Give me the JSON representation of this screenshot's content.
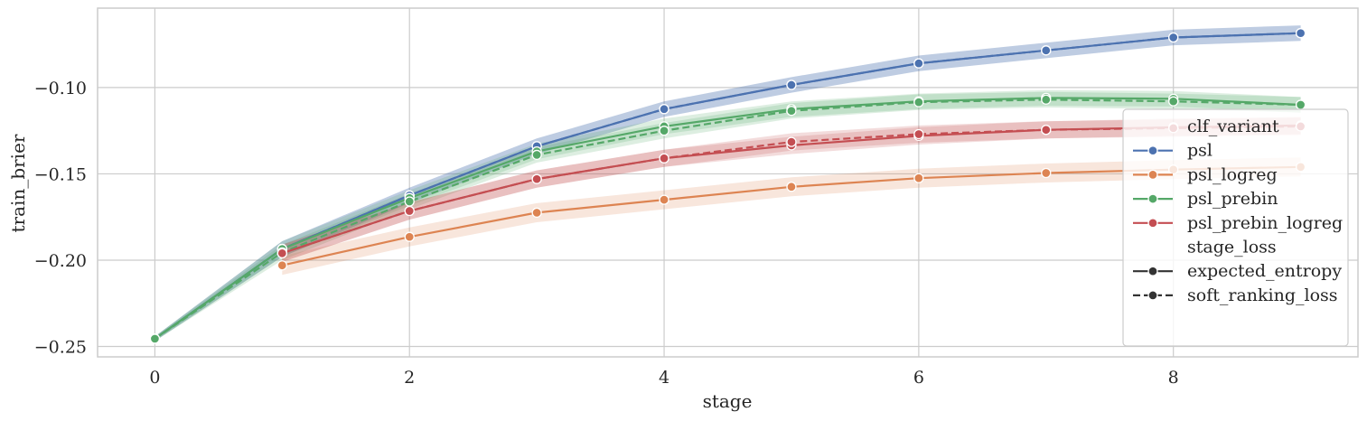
{
  "chart_data": {
    "type": "line",
    "xlabel": "stage",
    "ylabel": "train_brier",
    "xlim": [
      -0.45,
      9.45
    ],
    "ylim": [
      -0.256,
      -0.054
    ],
    "x_ticks": [
      0,
      2,
      4,
      6,
      8
    ],
    "x_tick_labels": [
      "0",
      "2",
      "4",
      "6",
      "8"
    ],
    "y_ticks": [
      -0.25,
      -0.2,
      -0.15,
      -0.1
    ],
    "y_tick_labels": [
      "−0.25",
      "−0.20",
      "−0.15",
      "−0.10"
    ],
    "grid": true,
    "legend_position": "right",
    "legend": {
      "hue_title": "clf_variant",
      "style_title": "stage_loss",
      "hue_entries": [
        "psl",
        "psl_logreg",
        "psl_prebin",
        "psl_prebin_logreg"
      ],
      "style_entries": [
        "expected_entropy",
        "soft_ranking_loss"
      ]
    },
    "series": [
      {
        "name": "psl",
        "stage_loss": "expected_entropy",
        "color": "#4c72b0",
        "dash": false,
        "x": [
          0,
          1,
          2,
          3,
          4,
          5,
          6,
          7,
          8,
          9
        ],
        "y": [
          -0.2455,
          -0.1935,
          -0.1625,
          -0.134,
          -0.1125,
          -0.0985,
          -0.086,
          -0.0785,
          -0.071,
          -0.0685
        ],
        "band": 0.0045
      },
      {
        "name": "psl",
        "stage_loss": "soft_ranking_loss",
        "color": "#4c72b0",
        "dash": true,
        "x": [
          0,
          1,
          2,
          3,
          4,
          5,
          6,
          7,
          8,
          9
        ],
        "y": [
          -0.2455,
          -0.1935,
          -0.1625,
          -0.134,
          -0.1125,
          -0.0985,
          -0.086,
          -0.0785,
          -0.071,
          -0.0685
        ],
        "band": 0.0045
      },
      {
        "name": "psl_logreg",
        "stage_loss": "expected_entropy",
        "color": "#dd8452",
        "dash": false,
        "x": [
          1,
          2,
          3,
          4,
          5,
          6,
          7,
          8,
          9
        ],
        "y": [
          -0.203,
          -0.1865,
          -0.1725,
          -0.165,
          -0.1575,
          -0.1525,
          -0.1495,
          -0.1475,
          -0.146
        ],
        "band": 0.0055
      },
      {
        "name": "psl_prebin",
        "stage_loss": "expected_entropy",
        "color": "#55a868",
        "dash": false,
        "x": [
          0,
          1,
          2,
          3,
          4,
          5,
          6,
          7,
          8,
          9
        ],
        "y": [
          -0.2455,
          -0.1935,
          -0.164,
          -0.137,
          -0.1225,
          -0.1125,
          -0.108,
          -0.106,
          -0.1065,
          -0.11
        ],
        "band": 0.0045
      },
      {
        "name": "psl_prebin",
        "stage_loss": "soft_ranking_loss",
        "color": "#55a868",
        "dash": true,
        "x": [
          0,
          1,
          2,
          3,
          4,
          5,
          6,
          7,
          8,
          9
        ],
        "y": [
          -0.2455,
          -0.1955,
          -0.166,
          -0.139,
          -0.125,
          -0.1135,
          -0.1085,
          -0.107,
          -0.108,
          -0.11
        ],
        "band": 0.0045
      },
      {
        "name": "psl_prebin_logreg",
        "stage_loss": "expected_entropy",
        "color": "#c44e52",
        "dash": false,
        "x": [
          1,
          2,
          3,
          4,
          5,
          6,
          7,
          8,
          9
        ],
        "y": [
          -0.196,
          -0.1715,
          -0.153,
          -0.141,
          -0.1335,
          -0.128,
          -0.1245,
          -0.123,
          -0.122
        ],
        "band": 0.005
      },
      {
        "name": "psl_prebin_logreg",
        "stage_loss": "soft_ranking_loss",
        "color": "#c44e52",
        "dash": true,
        "x": [
          1,
          2,
          3,
          4,
          5,
          6,
          7,
          8,
          9
        ],
        "y": [
          -0.196,
          -0.1715,
          -0.153,
          -0.141,
          -0.1315,
          -0.127,
          -0.1245,
          -0.1235,
          -0.1225
        ],
        "band": 0.005
      }
    ]
  }
}
